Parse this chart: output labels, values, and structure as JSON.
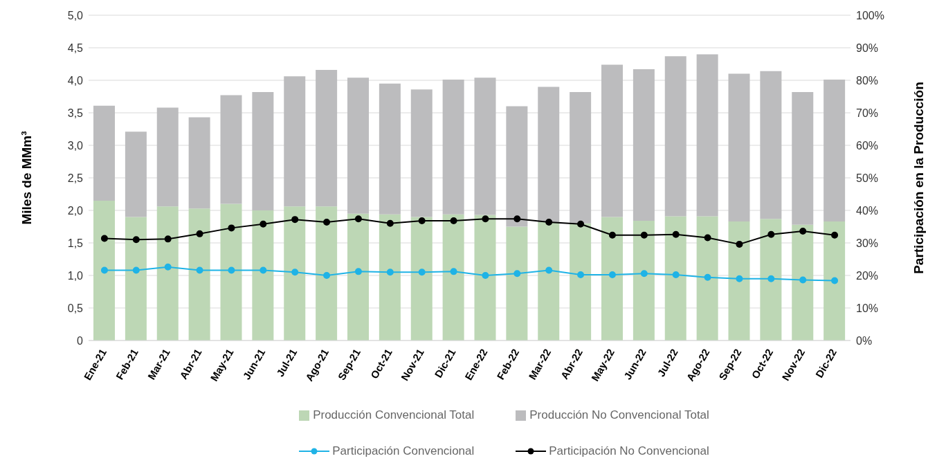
{
  "chart_data": {
    "type": "bar",
    "stacked": true,
    "categories": [
      "Ene-21",
      "Feb-21",
      "Mar-21",
      "Abr-21",
      "May-21",
      "Jun-21",
      "Jul-21",
      "Ago-21",
      "Sep-21",
      "Oct-21",
      "Nov-21",
      "Dic-21",
      "Ene-22",
      "Feb-22",
      "Mar-22",
      "Abr-22",
      "May-22",
      "Jun-22",
      "Jul-22",
      "Ago-22",
      "Sep-22",
      "Oct-22",
      "Nov-22",
      "Dic-22"
    ],
    "series": [
      {
        "name": "Producción Convencional Total",
        "color": "#bdd7b5",
        "values": [
          2.15,
          1.9,
          2.06,
          2.03,
          2.1,
          2.0,
          2.06,
          2.06,
          1.95,
          1.94,
          1.9,
          1.94,
          1.93,
          1.75,
          1.82,
          1.8,
          1.9,
          1.84,
          1.91,
          1.91,
          1.83,
          1.87,
          1.78,
          1.83
        ]
      },
      {
        "name": "Producción No Convencional Total",
        "color": "#bcbcbe",
        "values": [
          1.46,
          1.31,
          1.52,
          1.4,
          1.67,
          1.82,
          2.0,
          2.1,
          2.09,
          2.01,
          1.96,
          2.07,
          2.11,
          1.85,
          2.08,
          2.02,
          2.34,
          2.33,
          2.46,
          2.49,
          2.27,
          2.27,
          2.04,
          2.18
        ]
      },
      {
        "name": "Participación Convencional",
        "type": "line",
        "axis": "y2",
        "color": "#1fb3e6",
        "values": [
          21.6,
          21.6,
          22.6,
          21.6,
          21.6,
          21.6,
          21,
          20,
          21.2,
          21,
          21,
          21.2,
          20,
          20.6,
          21.6,
          20.2,
          20.2,
          20.6,
          20.2,
          19.4,
          19,
          19,
          18.6,
          18.4
        ]
      },
      {
        "name": "Participación No Convencional",
        "type": "line",
        "axis": "y2",
        "color": "#000000",
        "values": [
          31.4,
          31,
          31.2,
          32.8,
          34.6,
          35.8,
          37.2,
          36.4,
          37.4,
          36,
          36.8,
          36.8,
          37.4,
          37.4,
          36.4,
          35.8,
          32.4,
          32.4,
          32.6,
          31.6,
          29.6,
          32.6,
          33.6,
          32.4
        ]
      }
    ],
    "ylabel": "Miles de MMm³",
    "y2label": "Participación en la Producción",
    "ylim": [
      0,
      5
    ],
    "yticks": [
      0,
      {
        "value": 0.5,
        "label": "0,5"
      },
      {
        "value": 1,
        "label": "1,0"
      },
      {
        "value": 1.5,
        "label": "1,5"
      },
      {
        "value": 2,
        "label": "2,0"
      },
      {
        "value": 2.5,
        "label": "2,5"
      },
      {
        "value": 3,
        "label": "3,0"
      },
      {
        "value": 3.5,
        "label": "3,5"
      },
      {
        "value": 4,
        "label": "4,0"
      },
      {
        "value": 4.5,
        "label": "4,5"
      },
      {
        "value": 5,
        "label": "5,0"
      }
    ],
    "y2lim": [
      0,
      100
    ],
    "y2ticks": [
      {
        "value": 0,
        "label": "0%"
      },
      {
        "value": 10,
        "label": "10%"
      },
      {
        "value": 20,
        "label": "20%"
      },
      {
        "value": 30,
        "label": "30%"
      },
      {
        "value": 40,
        "label": "40%"
      },
      {
        "value": 50,
        "label": "50%"
      },
      {
        "value": 60,
        "label": "60%"
      },
      {
        "value": 70,
        "label": "70%"
      },
      {
        "value": 80,
        "label": "80%"
      },
      {
        "value": 90,
        "label": "90%"
      },
      {
        "value": 100,
        "label": "100%"
      }
    ],
    "grid": "y",
    "legend": "bottom",
    "marker": "circle"
  }
}
